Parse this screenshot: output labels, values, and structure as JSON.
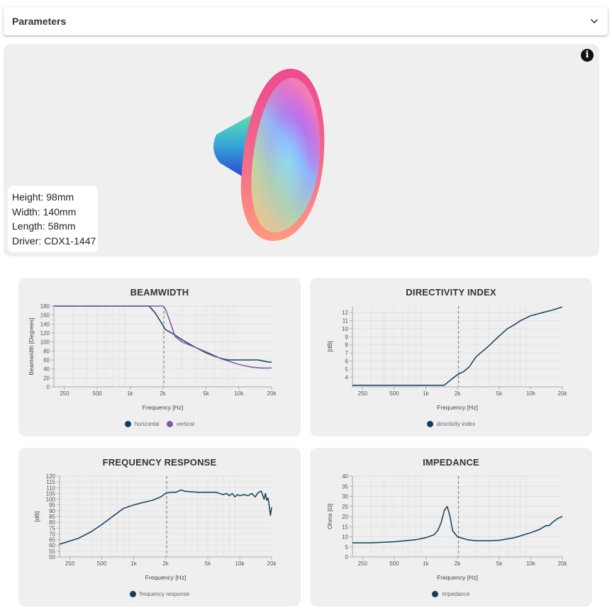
{
  "params": {
    "title": "Parameters"
  },
  "viewer": {
    "info_label": "i",
    "height": "Height: 98mm",
    "width": "Width: 140mm",
    "length": "Length: 58mm",
    "driver": "Driver: CDX1-1447"
  },
  "colors": {
    "horizontal": "#123e5c",
    "vertical": "#7a5aa0",
    "marker": "#888888",
    "grid": "#dddddd"
  },
  "chart_data": [
    {
      "type": "line",
      "title": "BEAMWIDTH",
      "xlabel": "Frequency [Hz]",
      "ylabel": "Beamwidth [Degrees]",
      "xscale": "log",
      "xlim": [
        200,
        20000
      ],
      "ylim": [
        0,
        180
      ],
      "xticks": [
        250,
        500,
        1000,
        2000,
        5000,
        10000,
        20000
      ],
      "xticklabels": [
        "250",
        "500",
        "1k",
        "2k",
        "5k",
        "10k",
        "20k"
      ],
      "yticks": [
        0,
        20,
        40,
        60,
        80,
        100,
        120,
        140,
        160,
        180
      ],
      "marker_x": 2050,
      "series": [
        {
          "name": "horizontal",
          "color": "#123e5c",
          "x": [
            200,
            500,
            1000,
            1500,
            1700,
            2000,
            2100,
            2500,
            3000,
            4000,
            5000,
            6000,
            7000,
            8000,
            10000,
            15000,
            18000,
            20000
          ],
          "y": [
            180,
            180,
            180,
            180,
            165,
            138,
            128,
            118,
            105,
            88,
            76,
            68,
            63,
            60,
            60,
            60,
            56,
            55
          ]
        },
        {
          "name": "vertical",
          "color": "#7a5aa0",
          "x": [
            200,
            500,
            1000,
            1500,
            2000,
            2100,
            2300,
            2600,
            3000,
            4000,
            5000,
            7000,
            10000,
            13000,
            16000,
            20000
          ],
          "y": [
            180,
            180,
            180,
            180,
            180,
            175,
            150,
            112,
            100,
            88,
            78,
            62,
            50,
            44,
            42,
            42
          ]
        }
      ]
    },
    {
      "type": "line",
      "title": "DIRECTIVITY INDEX",
      "xlabel": "Frequency [Hz]",
      "ylabel": "[dB]",
      "xscale": "log",
      "xlim": [
        200,
        20000
      ],
      "ylim": [
        2.8,
        12.8
      ],
      "xticks": [
        250,
        500,
        1000,
        2000,
        5000,
        10000,
        20000
      ],
      "xticklabels": [
        "250",
        "500",
        "1k",
        "2k",
        "5k",
        "10k",
        "20k"
      ],
      "yticks": [
        4,
        5,
        6,
        7,
        8,
        9,
        10,
        11,
        12
      ],
      "marker_x": 2050,
      "series": [
        {
          "name": "directivity index",
          "color": "#123e5c",
          "x": [
            200,
            500,
            1000,
            1500,
            1700,
            2000,
            2300,
            2600,
            3000,
            4000,
            5000,
            6000,
            7000,
            8000,
            10000,
            13000,
            16000,
            18000,
            20000
          ],
          "y": [
            3,
            3,
            3,
            3,
            3.6,
            4.3,
            4.7,
            5.3,
            6.5,
            7.9,
            9.1,
            10,
            10.5,
            11,
            11.6,
            12,
            12.3,
            12.5,
            12.7
          ]
        }
      ]
    },
    {
      "type": "line",
      "title": "FREQUENCY RESPONSE",
      "xlabel": "Frequency [Hz]",
      "ylabel": "[dB]",
      "xscale": "log",
      "xlim": [
        200,
        20000
      ],
      "ylim": [
        50,
        120
      ],
      "xticks": [
        250,
        500,
        1000,
        2000,
        5000,
        10000,
        20000
      ],
      "xticklabels": [
        "250",
        "500",
        "1k",
        "2k",
        "5k",
        "10k",
        "20k"
      ],
      "yticks": [
        50,
        55,
        60,
        65,
        70,
        75,
        80,
        85,
        90,
        95,
        100,
        105,
        110,
        115,
        120
      ],
      "marker_x": 2050,
      "series": [
        {
          "name": "frequency response",
          "color": "#123e5c",
          "x": [
            200,
            300,
            400,
            500,
            700,
            800,
            1000,
            1200,
            1500,
            1800,
            2000,
            2200,
            2500,
            2800,
            3000,
            4000,
            5000,
            6000,
            7000,
            7500,
            8000,
            8500,
            9000,
            9500,
            10000,
            11000,
            12000,
            13000,
            14000,
            15000,
            16000,
            17000,
            17500,
            18000,
            18500,
            19000,
            19500,
            20000
          ],
          "y": [
            61,
            66,
            72,
            78,
            88,
            92,
            95,
            97,
            99,
            102,
            105,
            106,
            106,
            108,
            107,
            106,
            106,
            106,
            104,
            105,
            103,
            105,
            102,
            104,
            103,
            104,
            103,
            105,
            102,
            106,
            107,
            100,
            105,
            99,
            101,
            94,
            86,
            93
          ]
        }
      ]
    },
    {
      "type": "line",
      "title": "IMPEDANCE",
      "xlabel": "Frequency [Hz]",
      "ylabel": "Ohms [Ω]",
      "xscale": "log",
      "xlim": [
        200,
        20000
      ],
      "ylim": [
        0,
        40
      ],
      "xticks": [
        250,
        500,
        1000,
        2000,
        5000,
        10000,
        20000
      ],
      "xticklabels": [
        "250",
        "500",
        "1k",
        "2k",
        "5k",
        "10k",
        "20k"
      ],
      "yticks": [
        0,
        5,
        10,
        15,
        20,
        25,
        30,
        35,
        40
      ],
      "marker_x": 2050,
      "series": [
        {
          "name": "impedance",
          "color": "#123e5c",
          "x": [
            200,
            300,
            500,
            800,
            1000,
            1200,
            1300,
            1400,
            1500,
            1600,
            1700,
            1800,
            2000,
            2500,
            3000,
            4000,
            5000,
            7000,
            10000,
            12000,
            14000,
            15000,
            16000,
            18000,
            20000
          ],
          "y": [
            7,
            7,
            7.5,
            8.5,
            9.5,
            11,
            13,
            17,
            23,
            25,
            20,
            13,
            10,
            8.5,
            8,
            8,
            8.2,
            9.5,
            12,
            13.5,
            15.5,
            15.5,
            17,
            19,
            20
          ]
        }
      ]
    }
  ]
}
